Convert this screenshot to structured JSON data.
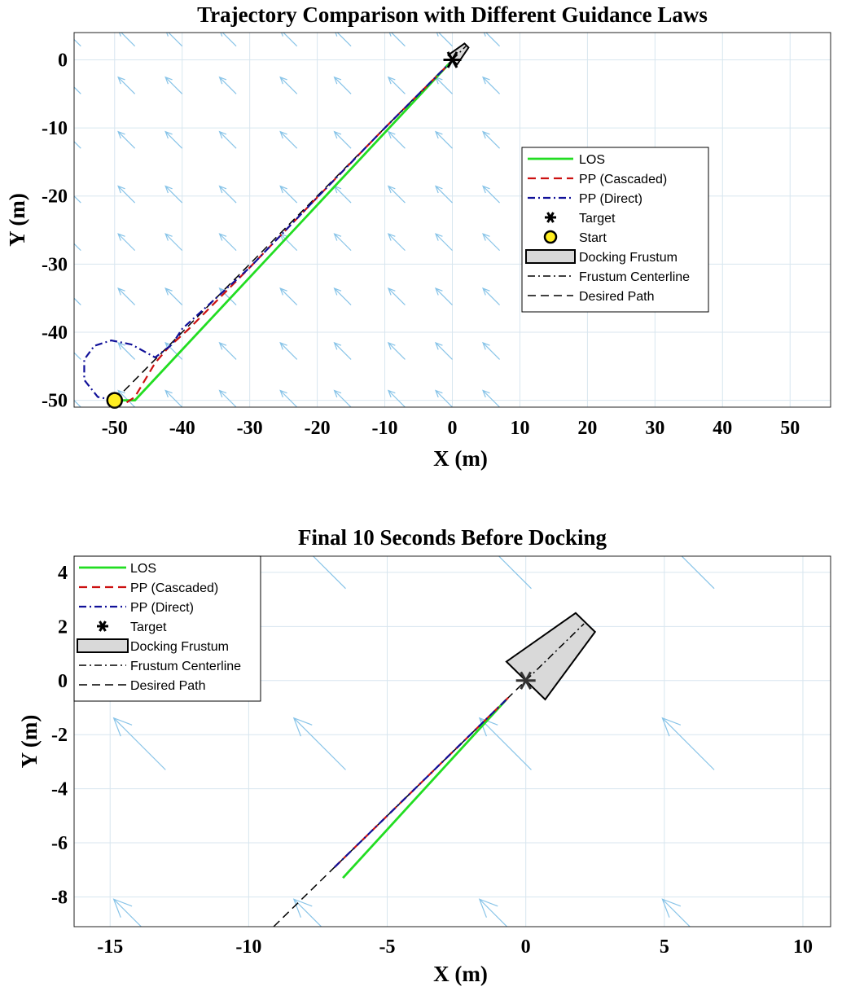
{
  "colors": {
    "los": "#22dd22",
    "pp_cascaded": "#cc1111",
    "pp_direct": "#111199",
    "field_arrows": "#88c4e8",
    "grid": "#d8e6ef",
    "frustum_fill": "#d9d9d9",
    "start_marker": "#ffee22"
  },
  "chart_data": [
    {
      "type": "line",
      "title": "Trajectory Comparison with Different Guidance Laws",
      "xlabel": "X (m)",
      "ylabel": "Y (m)",
      "xlim": [
        -56,
        56
      ],
      "ylim": [
        -51,
        4
      ],
      "xticks": [
        "-50",
        "-40",
        "-30",
        "-20",
        "-10",
        "0",
        "10",
        "20",
        "30",
        "40",
        "50"
      ],
      "yticks": [
        "0",
        "-10",
        "-20",
        "-30",
        "-40",
        "-50"
      ],
      "grid": true,
      "legend_position": "right-middle",
      "legend": [
        "LOS",
        "PP (Cascaded)",
        "PP (Direct)",
        "Target",
        "Start",
        "Docking Frustum",
        "Frustum Centerline",
        "Desired Path"
      ],
      "series": [
        {
          "name": "LOS",
          "style": "solid",
          "x": [
            -50,
            -47,
            -0.5
          ],
          "y": [
            -50,
            -50,
            -0.6
          ]
        },
        {
          "name": "PP (Cascaded)",
          "style": "dashed",
          "x": [
            -50,
            -48.5,
            -47,
            -45.5,
            -44,
            -42,
            -39,
            -30,
            -20,
            -10,
            -0.6
          ],
          "y": [
            -50,
            -50.5,
            -49.5,
            -47,
            -44.5,
            -42.2,
            -39.5,
            -30.5,
            -20.2,
            -10,
            -0.7
          ]
        },
        {
          "name": "PP (Direct)",
          "style": "dashdot",
          "x": [
            -50,
            -52.5,
            -54.5,
            -54.5,
            -53,
            -50.5,
            -47.5,
            -44,
            -41.5,
            -40,
            -30,
            -20,
            -10,
            -0.6
          ],
          "y": [
            -50,
            -49.5,
            -47,
            -44,
            -42,
            -41.2,
            -41.8,
            -43.7,
            -41.8,
            -39.5,
            -30.5,
            -20.2,
            -10,
            -0.7
          ]
        },
        {
          "name": "Desired Path",
          "style": "dashed",
          "x": [
            -50,
            0
          ],
          "y": [
            -50,
            0
          ]
        },
        {
          "name": "Frustum Centerline",
          "style": "dashdot",
          "x": [
            0,
            2
          ],
          "y": [
            0,
            2
          ]
        }
      ],
      "markers": {
        "target": {
          "x": 0,
          "y": 0
        },
        "start": {
          "x": -50,
          "y": -50
        }
      },
      "frustum": [
        [
          -0.6,
          0.7
        ],
        [
          1.8,
          2.4
        ],
        [
          2.4,
          1.8
        ],
        [
          0.7,
          -0.7
        ]
      ],
      "quiver": {
        "direction": [
          -1,
          1
        ],
        "x_grid": [
          -55,
          -47,
          -40,
          -32,
          -23,
          -15,
          -7,
          0,
          7
        ],
        "y_grid": [
          -51,
          -44,
          -36,
          -28,
          -21,
          -13,
          -5,
          2
        ]
      }
    },
    {
      "type": "line",
      "title": "Final 10 Seconds Before Docking",
      "xlabel": "X (m)",
      "ylabel": "Y (m)",
      "xlim": [
        -16.3,
        11
      ],
      "ylim": [
        -9.1,
        4.6
      ],
      "xticks": [
        "-15",
        "-10",
        "-5",
        "0",
        "5",
        "10"
      ],
      "yticks": [
        "4",
        "2",
        "0",
        "-2",
        "-4",
        "-6",
        "-8"
      ],
      "grid": true,
      "legend_position": "top-left",
      "legend": [
        "LOS",
        "PP (Cascaded)",
        "PP (Direct)",
        "Target",
        "Docking Frustum",
        "Frustum Centerline",
        "Desired Path"
      ],
      "series": [
        {
          "name": "LOS",
          "style": "solid",
          "x": [
            -6.6,
            -0.7
          ],
          "y": [
            -7.3,
            -0.7
          ]
        },
        {
          "name": "PP (Cascaded)",
          "style": "dashed",
          "x": [
            -6.9,
            -0.6
          ],
          "y": [
            -6.9,
            -0.6
          ]
        },
        {
          "name": "PP (Direct)",
          "style": "dashdot",
          "x": [
            -6.9,
            -0.65
          ],
          "y": [
            -6.9,
            -0.65
          ]
        },
        {
          "name": "Desired Path",
          "style": "dashed",
          "x": [
            -9.1,
            0
          ],
          "y": [
            -9.1,
            0
          ]
        },
        {
          "name": "Frustum Centerline",
          "style": "dashdot",
          "x": [
            0,
            2.1
          ],
          "y": [
            0,
            2.1
          ]
        }
      ],
      "markers": {
        "target": {
          "x": 0,
          "y": 0
        }
      },
      "frustum": [
        [
          -0.7,
          0.7
        ],
        [
          1.8,
          2.5
        ],
        [
          2.5,
          1.8
        ],
        [
          0.7,
          -0.7
        ]
      ],
      "quiver": {
        "direction": [
          -1,
          1
        ],
        "x_grid": [
          -13,
          -6.5,
          0.2,
          6.8
        ],
        "y_grid": [
          -10,
          -3.3,
          3.4
        ]
      }
    }
  ]
}
